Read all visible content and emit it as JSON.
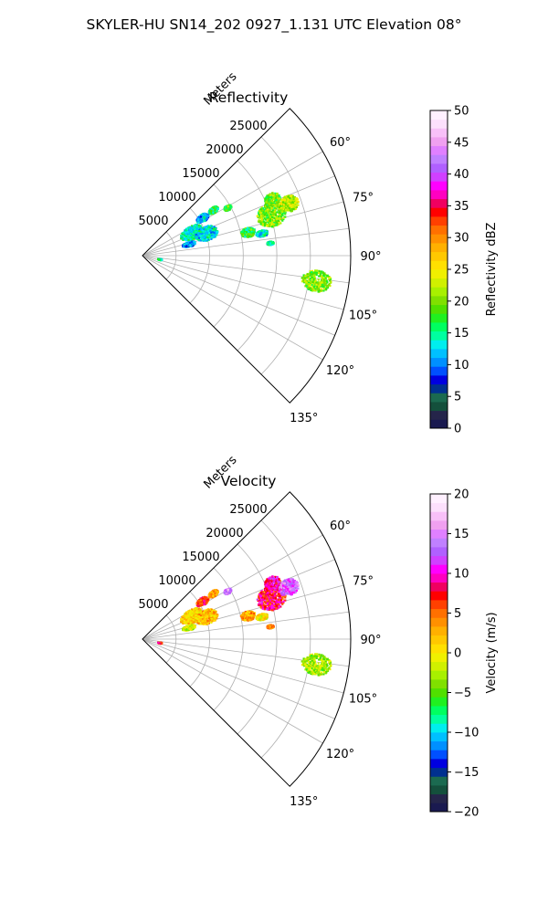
{
  "figure_title": "SKYLER-HU  SN14_202  0927_1.131 UTC Elevation 08°",
  "chart_data": [
    {
      "type": "polar-sector",
      "title": "Reflectivity",
      "theta_range_deg": [
        45,
        135
      ],
      "theta_ticks": [
        "60°",
        "75°",
        "90°",
        "105°",
        "120°",
        "135°"
      ],
      "radial_axis_label": "Meters",
      "radial_ticks": [
        "5000",
        "10000",
        "15000",
        "20000",
        "25000"
      ],
      "rlim": [
        0,
        31000
      ],
      "grid": true,
      "colorbar": {
        "label": "Reflectivity dBZ",
        "range": [
          0,
          50
        ],
        "ticks": [
          "0",
          "5",
          "10",
          "15",
          "20",
          "25",
          "30",
          "35",
          "40",
          "45",
          "50"
        ],
        "colors": [
          "#1a1a50",
          "#25254a",
          "#14503c",
          "#1b6a50",
          "#003090",
          "#0000e0",
          "#0050ff",
          "#0090ff",
          "#00c0ff",
          "#00eeee",
          "#00ffa0",
          "#00ff60",
          "#20f020",
          "#50e000",
          "#80e000",
          "#a8f000",
          "#d0f000",
          "#f0f000",
          "#ffe000",
          "#ffc800",
          "#ffb000",
          "#ff9000",
          "#ff7000",
          "#ff4000",
          "#ff0000",
          "#f00060",
          "#ff00c0",
          "#ff00ff",
          "#d040ff",
          "#b060ff",
          "#c080ff",
          "#e080ff",
          "#f0a0f0",
          "#f8c0f8",
          "#fce0fc",
          "#fff0ff"
        ]
      },
      "cells": [
        {
          "theta_deg": 60,
          "r_m": 14500,
          "value": 18,
          "spread_deg": 1.5,
          "spread_m": 600
        },
        {
          "theta_deg": 56.5,
          "r_m": 12500,
          "value": 16,
          "spread_deg": 2,
          "spread_m": 800
        },
        {
          "theta_deg": 72,
          "r_m": 20000,
          "value": 20,
          "spread_deg": 5,
          "spread_m": 2200
        },
        {
          "theta_deg": 70,
          "r_m": 23000,
          "value": 22,
          "spread_deg": 3,
          "spread_m": 1500
        },
        {
          "theta_deg": 66,
          "r_m": 21000,
          "value": 19,
          "spread_deg": 2.5,
          "spread_m": 1200
        },
        {
          "theta_deg": 77,
          "r_m": 16000,
          "value": 17,
          "spread_deg": 2.5,
          "spread_m": 1100
        },
        {
          "theta_deg": 64,
          "r_m": 8000,
          "value": 14,
          "spread_deg": 7,
          "spread_m": 1800
        },
        {
          "theta_deg": 70,
          "r_m": 10000,
          "value": 13,
          "spread_deg": 6,
          "spread_m": 1700
        },
        {
          "theta_deg": 75,
          "r_m": 7000,
          "value": 10,
          "spread_deg": 3,
          "spread_m": 1000
        },
        {
          "theta_deg": 57,
          "r_m": 10500,
          "value": 12,
          "spread_deg": 3,
          "spread_m": 1000
        },
        {
          "theta_deg": 79,
          "r_m": 18000,
          "value": 13,
          "spread_deg": 1.5,
          "spread_m": 900
        },
        {
          "theta_deg": 98,
          "r_m": 26000,
          "value": 20,
          "spread_deg": 3.5,
          "spread_m": 2200
        },
        {
          "theta_deg": 84,
          "r_m": 19000,
          "value": 14,
          "spread_deg": 0.8,
          "spread_m": 500
        },
        {
          "theta_deg": 100,
          "r_m": 2500,
          "value": 14,
          "spread_deg": 2,
          "spread_m": 300
        }
      ]
    },
    {
      "type": "polar-sector",
      "title": "Velocity",
      "theta_range_deg": [
        45,
        135
      ],
      "theta_ticks": [
        "60°",
        "75°",
        "90°",
        "105°",
        "120°",
        "135°"
      ],
      "radial_axis_label": "Meters",
      "radial_ticks": [
        "5000",
        "10000",
        "15000",
        "20000",
        "25000"
      ],
      "rlim": [
        0,
        31000
      ],
      "grid": true,
      "colorbar": {
        "label": "Velocity (m/s)",
        "range": [
          -20,
          20
        ],
        "ticks": [
          "−20",
          "−15",
          "−10",
          "−5",
          "0",
          "5",
          "10",
          "15",
          "20"
        ],
        "colors": [
          "#1a1a50",
          "#25254a",
          "#14503c",
          "#1b6a50",
          "#003090",
          "#0000e0",
          "#0050ff",
          "#0090ff",
          "#00c0ff",
          "#00eeee",
          "#00ffa0",
          "#00ff60",
          "#20f020",
          "#50e000",
          "#80e000",
          "#a8f000",
          "#d0f000",
          "#f0f000",
          "#ffe000",
          "#ffc800",
          "#ffb000",
          "#ff9000",
          "#ff7000",
          "#ff4000",
          "#ff0000",
          "#f00060",
          "#ff00c0",
          "#ff00ff",
          "#d040ff",
          "#b060ff",
          "#c080ff",
          "#e080ff",
          "#f0a0f0",
          "#f8c0f8",
          "#fce0fc",
          "#fff0ff"
        ]
      },
      "cells": [
        {
          "theta_deg": 60,
          "r_m": 14500,
          "value": 14,
          "spread_deg": 1.5,
          "spread_m": 600
        },
        {
          "theta_deg": 56.5,
          "r_m": 12500,
          "value": 3,
          "spread_deg": 2,
          "spread_m": 800
        },
        {
          "theta_deg": 72,
          "r_m": 20000,
          "value": 8,
          "spread_deg": 5,
          "spread_m": 2200
        },
        {
          "theta_deg": 70,
          "r_m": 23000,
          "value": 13,
          "spread_deg": 3,
          "spread_m": 1500
        },
        {
          "theta_deg": 66,
          "r_m": 21000,
          "value": 9,
          "spread_deg": 2.5,
          "spread_m": 1200
        },
        {
          "theta_deg": 77,
          "r_m": 16000,
          "value": 3,
          "spread_deg": 2.5,
          "spread_m": 1100
        },
        {
          "theta_deg": 64,
          "r_m": 8000,
          "value": 1,
          "spread_deg": 7,
          "spread_m": 1800
        },
        {
          "theta_deg": 70,
          "r_m": 10000,
          "value": 2,
          "spread_deg": 6,
          "spread_m": 1700
        },
        {
          "theta_deg": 75,
          "r_m": 7000,
          "value": -2,
          "spread_deg": 3,
          "spread_m": 1000
        },
        {
          "theta_deg": 57,
          "r_m": 10500,
          "value": 7,
          "spread_deg": 3,
          "spread_m": 1000
        },
        {
          "theta_deg": 79,
          "r_m": 18000,
          "value": 0,
          "spread_deg": 1.5,
          "spread_m": 900
        },
        {
          "theta_deg": 98,
          "r_m": 26000,
          "value": -3,
          "spread_deg": 3.5,
          "spread_m": 2200
        },
        {
          "theta_deg": 84,
          "r_m": 19000,
          "value": 4,
          "spread_deg": 0.8,
          "spread_m": 500
        },
        {
          "theta_deg": 100,
          "r_m": 2500,
          "value": 6,
          "spread_deg": 2,
          "spread_m": 300
        }
      ]
    }
  ]
}
